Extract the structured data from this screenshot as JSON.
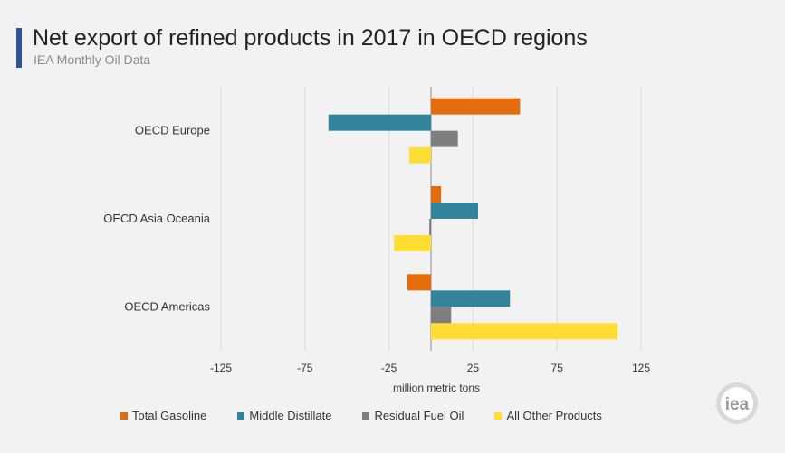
{
  "header": {
    "title": "Net export of refined products in 2017 in OECD regions",
    "subtitle": "IEA Monthly Oil Data"
  },
  "logo_text": "iea",
  "chart_data": {
    "type": "bar",
    "orientation": "horizontal",
    "categories": [
      "OECD Europe",
      "OECD Asia Oceania",
      "OECD Americas"
    ],
    "series": [
      {
        "name": "Total Gasoline",
        "color": "#e46c0a",
        "values": [
          53,
          6,
          -14
        ]
      },
      {
        "name": "Middle Distillate",
        "color": "#31849b",
        "values": [
          -61,
          28,
          47
        ]
      },
      {
        "name": "Residual Fuel Oil",
        "color": "#7f7f7f",
        "values": [
          16,
          -1,
          12
        ]
      },
      {
        "name": "All Other Products",
        "color": "#ffdd33",
        "values": [
          -13,
          -22,
          111
        ]
      }
    ],
    "xlabel": "million metric tons",
    "xlim": [
      -125,
      125
    ],
    "xticks": [
      -125,
      -75,
      -25,
      25,
      75,
      125
    ],
    "xtick_labels": [
      "-125",
      "-75",
      "-25",
      "25",
      "75",
      "125"
    ],
    "grid": "vertical",
    "legend_position": "bottom"
  }
}
